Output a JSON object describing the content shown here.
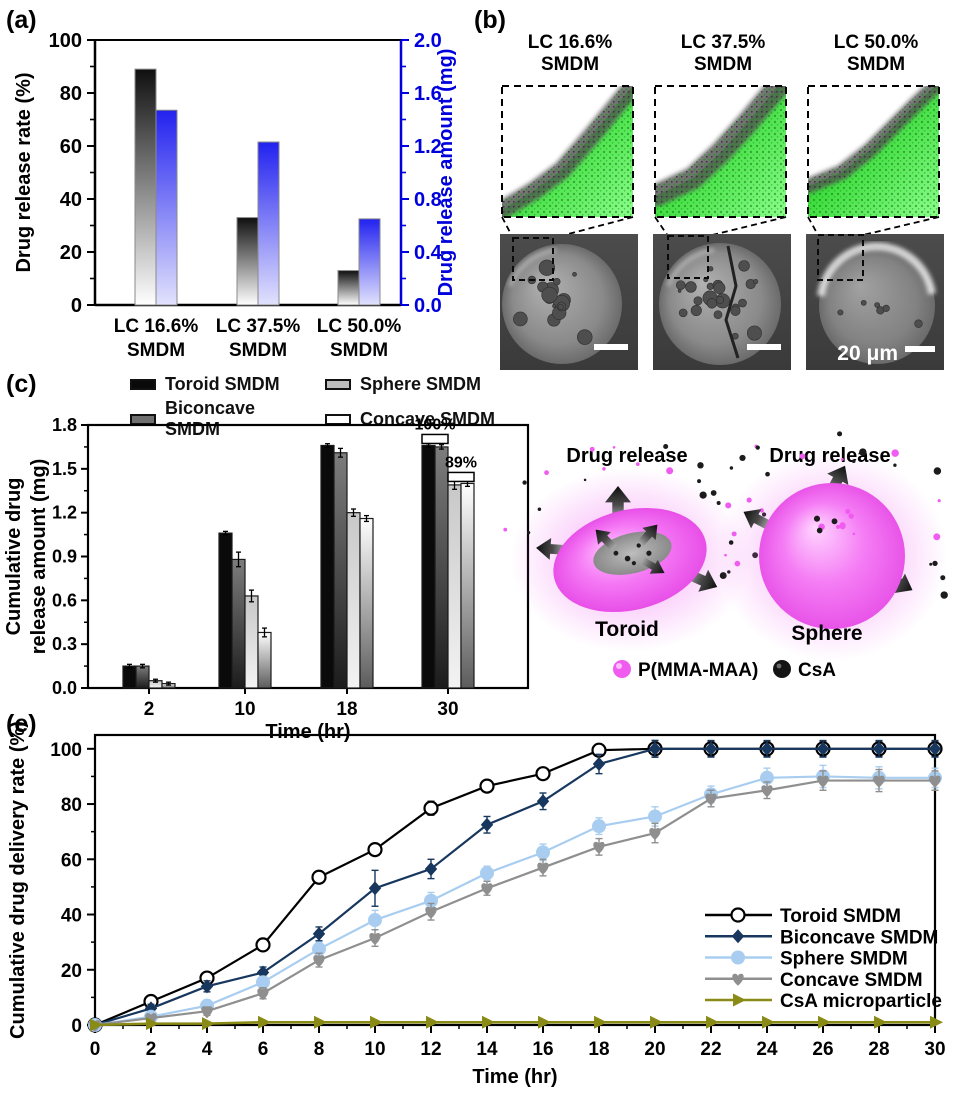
{
  "panels": {
    "a": {
      "label": "(a)"
    },
    "b": {
      "label": "(b)",
      "columns": [
        {
          "title": "LC 16.6%\nSMDM"
        },
        {
          "title": "LC 37.5%\nSMDM"
        },
        {
          "title": "LC 50.0%\nSMDM"
        }
      ],
      "scale_bar_label": "20 μm"
    },
    "c": {
      "label": "(c)"
    },
    "e": {
      "label": "(e)"
    }
  },
  "schematic": {
    "left_title": "Drug release",
    "right_title": "Drug release",
    "left_label": "Toroid",
    "right_label": "Sphere",
    "legend": [
      {
        "name": "P(MMA-MAA)",
        "color": "#f05cf0"
      },
      {
        "name": "CsA",
        "color": "#141414"
      }
    ]
  },
  "chart_data": [
    {
      "id": "panel-a",
      "type": "bar",
      "categories": [
        "LC 16.6% SMDM",
        "LC 37.5% SMDM",
        "LC 50.0% SMDM"
      ],
      "categories_lines": [
        [
          "LC 16.6%",
          "SMDM"
        ],
        [
          "LC 37.5%",
          "SMDM"
        ],
        [
          "LC 50.0%",
          "SMDM"
        ]
      ],
      "series": [
        {
          "name": "Drug release rate",
          "axis": "left",
          "values": [
            89,
            33,
            13
          ]
        },
        {
          "name": "Drug release amount",
          "axis": "right",
          "values": [
            1.47,
            1.23,
            0.65
          ]
        }
      ],
      "ylabel_left": "Drug release rate (%)",
      "ylabel_right": "Drug release amount (mg)",
      "ylim_left": [
        0,
        100
      ],
      "yticks_left": [
        "0",
        "20",
        "40",
        "60",
        "80",
        "100"
      ],
      "ylim_right": [
        0,
        2.0
      ],
      "yticks_right": [
        "0.0",
        "0.4",
        "0.8",
        "1.2",
        "1.6",
        "2.0"
      ],
      "colors": {
        "left_bar_top": "#0f0f0f",
        "left_bar_bottom": "#ffffff",
        "right_bar_top": "#2222f0",
        "right_bar_bottom": "#e2e2fd",
        "right_axis": "#0000dd",
        "left_axis": "#000000"
      }
    },
    {
      "id": "panel-c",
      "type": "grouped-bar",
      "categories": [
        "2",
        "10",
        "18",
        "30"
      ],
      "xlabel": "Time (hr)",
      "ylabel_lines": [
        "Cumulative drug",
        "release amount (mg)"
      ],
      "ylim": [
        0,
        1.8
      ],
      "yticks": [
        "0.0",
        "0.3",
        "0.6",
        "0.9",
        "1.2",
        "1.5",
        "1.8"
      ],
      "series": [
        {
          "name": "Toroid SMDM",
          "values": [
            0.15,
            1.06,
            1.66,
            1.66
          ],
          "errors": [
            0.012,
            0.012,
            0.012,
            0.012
          ],
          "fill_top": "#0a0a0a",
          "fill_bottom": "#0a0a0a",
          "legend_fill": "#0a0a0a"
        },
        {
          "name": "Biconcave SMDM",
          "values": [
            0.15,
            0.88,
            1.61,
            1.65
          ],
          "errors": [
            0.012,
            0.05,
            0.03,
            0.015
          ],
          "fill_top": "#7d7d7d",
          "fill_bottom": "#1c1c1c",
          "legend_fill": "#6f6f6f"
        },
        {
          "name": "Sphere SMDM",
          "values": [
            0.05,
            0.63,
            1.2,
            1.39
          ],
          "errors": [
            0.01,
            0.04,
            0.025,
            0.03
          ],
          "fill_top": "#c8c8c8",
          "fill_bottom": "#f3f3f3",
          "legend_fill": "#bdbdbd"
        },
        {
          "name": "Concave SMDM",
          "values": [
            0.03,
            0.38,
            1.16,
            1.4
          ],
          "errors": [
            0.01,
            0.03,
            0.02,
            0.02
          ],
          "fill_top": "#ffffff",
          "fill_bottom": "#5c5c5c",
          "legend_fill": "#ffffff"
        }
      ],
      "annotations": [
        {
          "text": "100%",
          "category_index": 3,
          "bar_span": [
            0,
            1
          ]
        },
        {
          "text": "89%",
          "category_index": 3,
          "bar_span": [
            2,
            3
          ]
        }
      ]
    },
    {
      "id": "panel-e",
      "type": "line",
      "x": [
        0,
        2,
        4,
        6,
        8,
        10,
        12,
        14,
        16,
        18,
        20,
        22,
        24,
        26,
        28,
        30
      ],
      "xlabel": "Time (hr)",
      "ylabel": "Cumulative drug delivery rate (%)",
      "ylim": [
        0,
        100
      ],
      "yticks": [
        "0",
        "20",
        "40",
        "60",
        "80",
        "100"
      ],
      "legend_position": "inside-right-bottom",
      "series": [
        {
          "name": "Toroid SMDM",
          "color": "#000000",
          "marker": "open-circle",
          "values": [
            0,
            8.5,
            17,
            29,
            53.5,
            63.5,
            78.5,
            86.5,
            91,
            99.5,
            100,
            100,
            100,
            100,
            100,
            100
          ],
          "errors": [
            0,
            1.5,
            1.5,
            1.5,
            2,
            2,
            2.5,
            2,
            2,
            1.5,
            3,
            2.5,
            2.5,
            2.5,
            2.5,
            2.5
          ]
        },
        {
          "name": "Biconcave SMDM",
          "color": "#17375e",
          "marker": "diamond",
          "values": [
            0,
            6,
            14,
            19,
            33,
            49.5,
            56.5,
            72.5,
            81,
            94.5,
            100,
            100,
            100,
            100,
            100,
            100
          ],
          "errors": [
            0,
            1.5,
            2,
            2,
            2.5,
            6.5,
            3.5,
            3,
            3,
            3.5,
            3,
            3,
            3,
            3,
            3,
            3
          ]
        },
        {
          "name": "Sphere SMDM",
          "color": "#a8cdf0",
          "marker": "circle",
          "values": [
            0,
            3,
            7,
            15.5,
            27.5,
            38,
            45,
            55,
            62.5,
            72,
            75.5,
            83.5,
            89.5,
            90,
            89.5,
            89.5
          ],
          "errors": [
            0,
            1,
            1.5,
            2,
            2.5,
            3.5,
            3,
            2.5,
            3,
            3,
            3.5,
            3,
            3.5,
            4,
            4,
            3.5
          ]
        },
        {
          "name": "Concave SMDM",
          "color": "#8f8f8f",
          "marker": "heart-down",
          "values": [
            0,
            2.5,
            5,
            11.5,
            23.5,
            31.5,
            41,
            49.5,
            57,
            64.5,
            69.5,
            82,
            85,
            88.5,
            88.5,
            88.5
          ],
          "errors": [
            0,
            1,
            1.5,
            2,
            2.5,
            3,
            3,
            2.5,
            3,
            3,
            3.5,
            3,
            3,
            3.5,
            4,
            3.5
          ]
        },
        {
          "name": "CsA microparticle",
          "color": "#8a8b17",
          "marker": "triangle-right",
          "values": [
            0,
            0.5,
            0.5,
            1,
            1,
            1,
            1,
            1,
            1,
            1,
            1,
            1,
            1,
            1,
            1,
            1
          ],
          "errors": [
            0,
            0,
            0,
            0,
            0,
            0,
            0,
            0,
            0,
            0,
            0,
            0,
            0,
            0,
            0,
            0
          ]
        }
      ]
    }
  ]
}
